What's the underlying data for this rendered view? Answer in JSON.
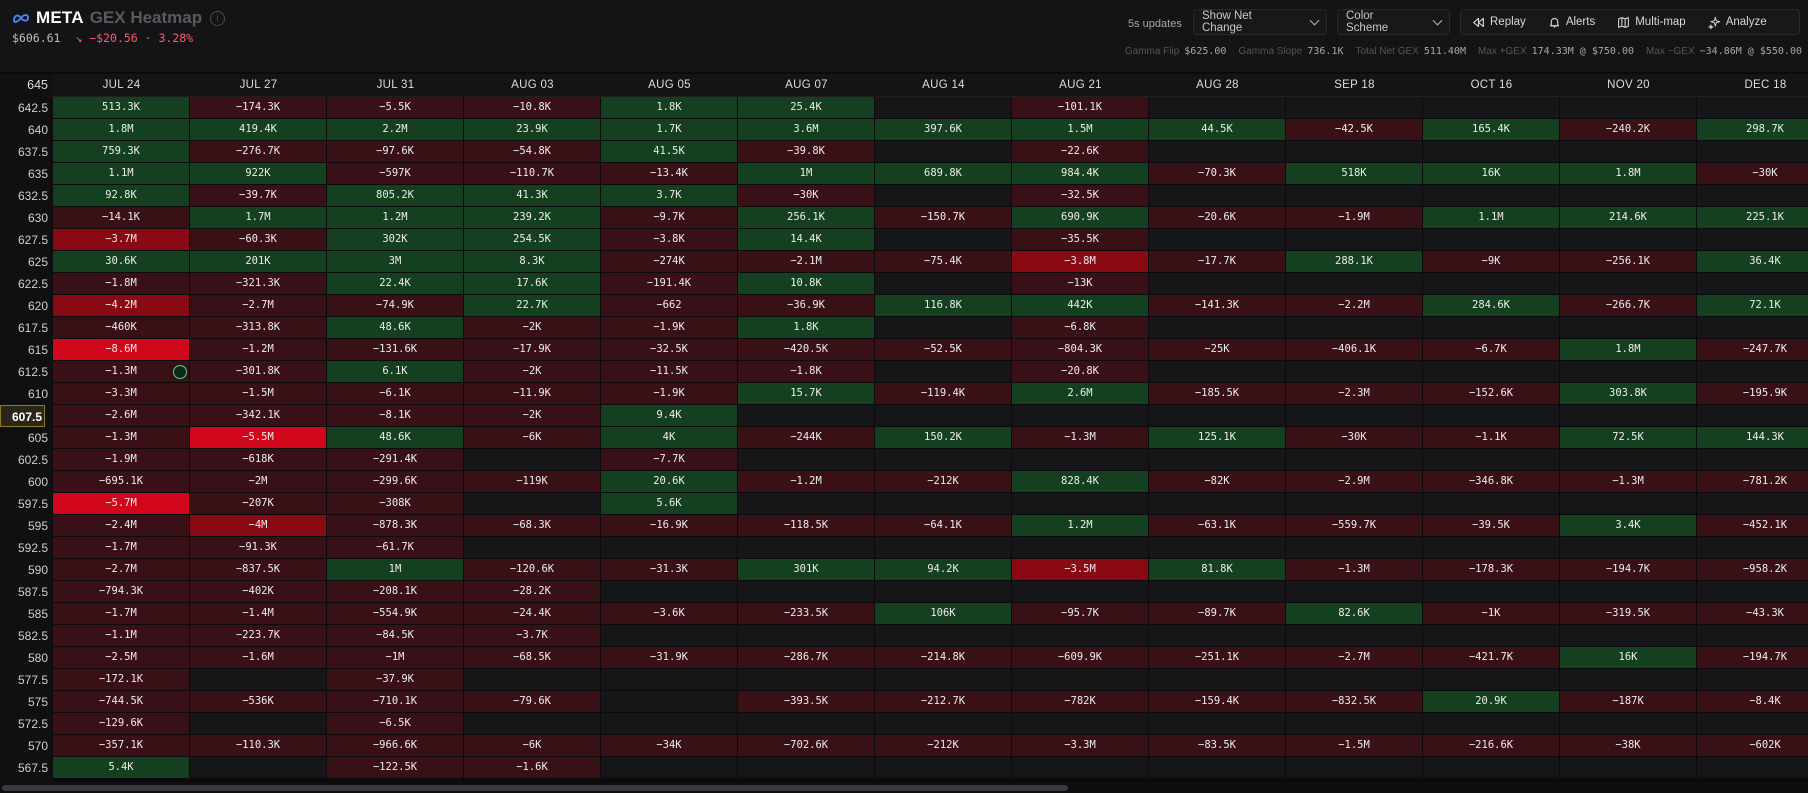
{
  "header": {
    "symbol": "META",
    "product": "GEX Heatmap",
    "price": "$606.61",
    "change": "↘ −$20.56 · 3.28%",
    "update_interval": "5s updates",
    "view_select": "Show Net Change",
    "color_select": "Color Scheme",
    "buttons": {
      "replay": "Replay",
      "alerts": "Alerts",
      "multimap": "Multi-map",
      "analyze": "Analyze"
    }
  },
  "stats": [
    {
      "label": "Gamma Flip",
      "value": "$625.00"
    },
    {
      "label": "Gamma Slope",
      "value": "736.1K"
    },
    {
      "label": "Total Net GEX",
      "value": "511.40M"
    },
    {
      "label": "Max +GEX",
      "value": "174.33M @ $750.00"
    },
    {
      "label": "Max −GEX",
      "value": "−34.86M @ $550.00"
    }
  ],
  "grid": {
    "top_strike": "645",
    "current_strike": "607.5",
    "expirations": [
      "JUL 24",
      "JUL 27",
      "JUL 31",
      "AUG 03",
      "AUG 05",
      "AUG 07",
      "AUG 14",
      "AUG 21",
      "AUG 28",
      "SEP 18",
      "OCT 16",
      "NOV 20",
      "DEC 18"
    ],
    "rows": [
      {
        "strike": "642.5",
        "cells": [
          "513.3K",
          "−174.3K",
          "−5.5K",
          "−10.8K",
          "1.8K",
          "25.4K",
          "",
          "−101.1K",
          "",
          "",
          "",
          "",
          ""
        ]
      },
      {
        "strike": "640",
        "cells": [
          "1.8M",
          "419.4K",
          "2.2M",
          "23.9K",
          "1.7K",
          "3.6M",
          "397.6K",
          "1.5M",
          "44.5K",
          "−42.5K",
          "165.4K",
          "−240.2K",
          "298.7K"
        ]
      },
      {
        "strike": "637.5",
        "cells": [
          "759.3K",
          "−276.7K",
          "−97.6K",
          "−54.8K",
          "41.5K",
          "−39.8K",
          "",
          "−22.6K",
          "",
          "",
          "",
          "",
          ""
        ]
      },
      {
        "strike": "635",
        "cells": [
          "1.1M",
          "922K",
          "−597K",
          "−110.7K",
          "−13.4K",
          "1M",
          "689.8K",
          "984.4K",
          "−70.3K",
          "518K",
          "16K",
          "1.8M",
          "−30K"
        ]
      },
      {
        "strike": "632.5",
        "cells": [
          "92.8K",
          "−39.7K",
          "805.2K",
          "41.3K",
          "3.7K",
          "−30K",
          "",
          "−32.5K",
          "",
          "",
          "",
          "",
          ""
        ]
      },
      {
        "strike": "630",
        "cells": [
          "−14.1K",
          "1.7M",
          "1.2M",
          "239.2K",
          "−9.7K",
          "256.1K",
          "−150.7K",
          "690.9K",
          "−20.6K",
          "−1.9M",
          "1.1M",
          "214.6K",
          "225.1K"
        ]
      },
      {
        "strike": "627.5",
        "cells": [
          "−3.7M",
          "−60.3K",
          "302K",
          "254.5K",
          "−3.8K",
          "14.4K",
          "",
          "−35.5K",
          "",
          "",
          "",
          "",
          ""
        ]
      },
      {
        "strike": "625",
        "cells": [
          "30.6K",
          "201K",
          "3M",
          "8.3K",
          "−274K",
          "−2.1M",
          "−75.4K",
          "−3.8M",
          "−17.7K",
          "288.1K",
          "−9K",
          "−256.1K",
          "36.4K"
        ]
      },
      {
        "strike": "622.5",
        "cells": [
          "−1.8M",
          "−321.3K",
          "22.4K",
          "17.6K",
          "−191.4K",
          "10.8K",
          "",
          "−13K",
          "",
          "",
          "",
          "",
          ""
        ]
      },
      {
        "strike": "620",
        "cells": [
          "−4.2M",
          "−2.7M",
          "−74.9K",
          "22.7K",
          "−662",
          "−36.9K",
          "116.8K",
          "442K",
          "−141.3K",
          "−2.2M",
          "284.6K",
          "−266.7K",
          "72.1K"
        ]
      },
      {
        "strike": "617.5",
        "cells": [
          "−460K",
          "−313.8K",
          "48.6K",
          "−2K",
          "−1.9K",
          "1.8K",
          "",
          "−6.8K",
          "",
          "",
          "",
          "",
          ""
        ]
      },
      {
        "strike": "615",
        "cells": [
          "−8.6M",
          "−1.2M",
          "−131.6K",
          "−17.9K",
          "−32.5K",
          "−420.5K",
          "−52.5K",
          "−804.3K",
          "−25K",
          "−406.1K",
          "−6.7K",
          "1.8M",
          "−247.7K"
        ]
      },
      {
        "strike": "612.5",
        "cells": [
          "−1.3M",
          "−301.8K",
          "6.1K",
          "−2K",
          "−11.5K",
          "−1.8K",
          "",
          "−20.8K",
          "",
          "",
          "",
          "",
          ""
        ]
      },
      {
        "strike": "610",
        "cells": [
          "−3.3M",
          "−1.5M",
          "−6.1K",
          "−11.9K",
          "−1.9K",
          "15.7K",
          "−119.4K",
          "2.6M",
          "−185.5K",
          "−2.3M",
          "−152.6K",
          "303.8K",
          "−195.9K"
        ]
      },
      {
        "strike": "607.5",
        "cells": [
          "−2.6M",
          "−342.1K",
          "−8.1K",
          "−2K",
          "9.4K",
          "",
          "",
          "",
          "",
          "",
          "",
          "",
          ""
        ]
      },
      {
        "strike": "605",
        "cells": [
          "−1.3M",
          "−5.5M",
          "48.6K",
          "−6K",
          "4K",
          "−244K",
          "150.2K",
          "−1.3M",
          "125.1K",
          "−30K",
          "−1.1K",
          "72.5K",
          "144.3K"
        ]
      },
      {
        "strike": "602.5",
        "cells": [
          "−1.9M",
          "−618K",
          "−291.4K",
          "",
          "−7.7K",
          "",
          "",
          "",
          "",
          "",
          "",
          "",
          ""
        ]
      },
      {
        "strike": "600",
        "cells": [
          "−695.1K",
          "−2M",
          "−299.6K",
          "−119K",
          "20.6K",
          "−1.2M",
          "−212K",
          "828.4K",
          "−82K",
          "−2.9M",
          "−346.8K",
          "−1.3M",
          "−781.2K"
        ]
      },
      {
        "strike": "597.5",
        "cells": [
          "−5.7M",
          "−207K",
          "−308K",
          "",
          "5.6K",
          "",
          "",
          "",
          "",
          "",
          "",
          "",
          ""
        ]
      },
      {
        "strike": "595",
        "cells": [
          "−2.4M",
          "−4M",
          "−878.3K",
          "−68.3K",
          "−16.9K",
          "−118.5K",
          "−64.1K",
          "1.2M",
          "−63.1K",
          "−559.7K",
          "−39.5K",
          "3.4K",
          "−452.1K"
        ]
      },
      {
        "strike": "592.5",
        "cells": [
          "−1.7M",
          "−91.3K",
          "−61.7K",
          "",
          "",
          "",
          "",
          "",
          "",
          "",
          "",
          "",
          ""
        ]
      },
      {
        "strike": "590",
        "cells": [
          "−2.7M",
          "−837.5K",
          "1M",
          "−120.6K",
          "−31.3K",
          "301K",
          "94.2K",
          "−3.5M",
          "81.8K",
          "−1.3M",
          "−178.3K",
          "−194.7K",
          "−958.2K"
        ]
      },
      {
        "strike": "587.5",
        "cells": [
          "−794.3K",
          "−402K",
          "−208.1K",
          "−28.2K",
          "",
          "",
          "",
          "",
          "",
          "",
          "",
          "",
          ""
        ]
      },
      {
        "strike": "585",
        "cells": [
          "−1.7M",
          "−1.4M",
          "−554.9K",
          "−24.4K",
          "−3.6K",
          "−233.5K",
          "106K",
          "−95.7K",
          "−89.7K",
          "82.6K",
          "−1K",
          "−319.5K",
          "−43.3K"
        ]
      },
      {
        "strike": "582.5",
        "cells": [
          "−1.1M",
          "−223.7K",
          "−84.5K",
          "−3.7K",
          "",
          "",
          "",
          "",
          "",
          "",
          "",
          "",
          ""
        ]
      },
      {
        "strike": "580",
        "cells": [
          "−2.5M",
          "−1.6M",
          "−1M",
          "−68.5K",
          "−31.9K",
          "−286.7K",
          "−214.8K",
          "−609.9K",
          "−251.1K",
          "−2.7M",
          "−421.7K",
          "16K",
          "−194.7K"
        ]
      },
      {
        "strike": "577.5",
        "cells": [
          "−172.1K",
          "",
          "−37.9K",
          "",
          "",
          "",
          "",
          "",
          "",
          "",
          "",
          "",
          ""
        ]
      },
      {
        "strike": "575",
        "cells": [
          "−744.5K",
          "−536K",
          "−710.1K",
          "−79.6K",
          "",
          "−393.5K",
          "−212.7K",
          "−782K",
          "−159.4K",
          "−832.5K",
          "20.9K",
          "−187K",
          "−8.4K"
        ]
      },
      {
        "strike": "572.5",
        "cells": [
          "−129.6K",
          "",
          "−6.5K",
          "",
          "",
          "",
          "",
          "",
          "",
          "",
          "",
          "",
          ""
        ]
      },
      {
        "strike": "570",
        "cells": [
          "−357.1K",
          "−110.3K",
          "−966.6K",
          "−6K",
          "−34K",
          "−702.6K",
          "−212K",
          "−3.3M",
          "−83.5K",
          "−1.5M",
          "−216.6K",
          "−38K",
          "−602K"
        ]
      },
      {
        "strike": "567.5",
        "cells": [
          "5.4K",
          "",
          "−122.5K",
          "−1.6K",
          "",
          "",
          "",
          "",
          "",
          "",
          "",
          "",
          ""
        ]
      }
    ]
  },
  "colors": {
    "positive": "#14401f",
    "negative": "#3a1017",
    "neg_strong": "#d0061a",
    "neg_mid": "#8a0a14",
    "empty": "#161618",
    "accent_current": "#8a7a2a"
  }
}
